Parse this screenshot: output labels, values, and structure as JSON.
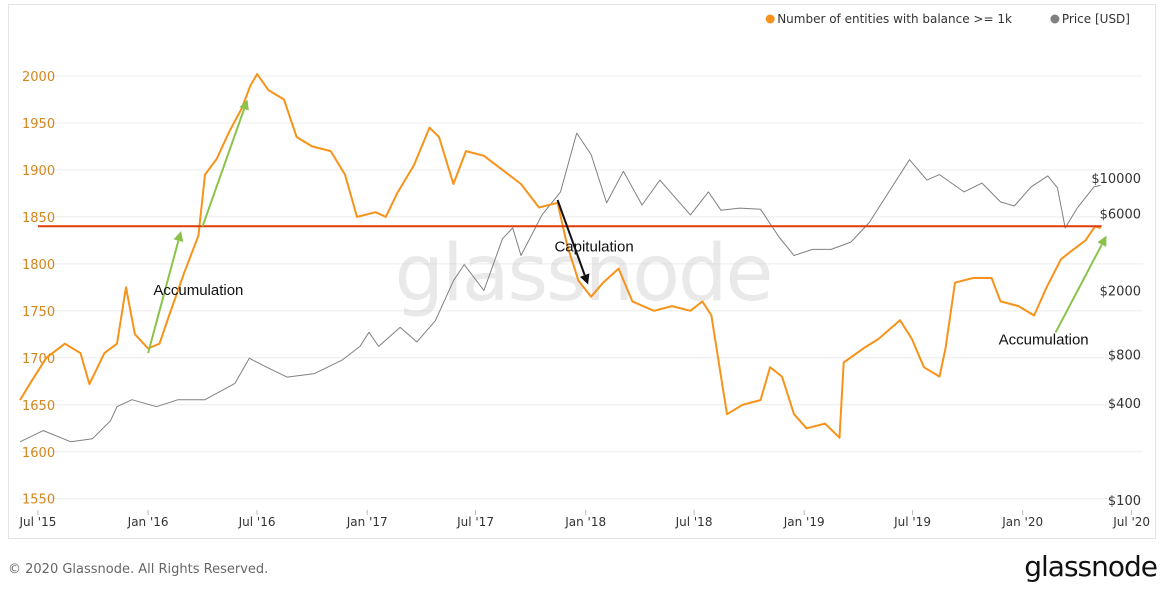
{
  "chart_data": {
    "type": "line",
    "title": "",
    "legend": {
      "placement": "top-right",
      "items": [
        {
          "label": "Number of entities with balance >= 1k",
          "color": "#f7931a"
        },
        {
          "label": "Price [USD]",
          "color": "#808080"
        }
      ]
    },
    "x_ticks": [
      "Jul '15",
      "Jan '16",
      "Jul '16",
      "Jan '17",
      "Jul '17",
      "Jan '18",
      "Jul '18",
      "Jan '19",
      "Jul '19",
      "Jan '20",
      "Jul '20"
    ],
    "x_range": [
      "2015-06-01",
      "2020-07-20"
    ],
    "y_left": {
      "ticks": [
        1550,
        1600,
        1650,
        1700,
        1750,
        1800,
        1850,
        1900,
        1950,
        2000
      ],
      "range": [
        1538,
        2017
      ],
      "color": "#d4861e"
    },
    "y_right": {
      "scale": "log",
      "ticks": [
        "$100",
        "$400",
        "$800",
        "$2000",
        "$6000",
        "$10000"
      ],
      "tick_values": [
        100,
        400,
        800,
        2000,
        6000,
        10000
      ]
    },
    "grid": true,
    "series": [
      {
        "name": "Number of entities with balance >= 1k",
        "axis": "left",
        "color": "#f7931a",
        "points": [
          [
            "2015-06-01",
            1655
          ],
          [
            "2015-06-20",
            1675
          ],
          [
            "2015-07-15",
            1700
          ],
          [
            "2015-08-15",
            1715
          ],
          [
            "2015-09-10",
            1705
          ],
          [
            "2015-09-25",
            1672
          ],
          [
            "2015-10-20",
            1705
          ],
          [
            "2015-11-10",
            1715
          ],
          [
            "2015-11-25",
            1775
          ],
          [
            "2015-12-10",
            1725
          ],
          [
            "2016-01-01",
            1710
          ],
          [
            "2016-01-20",
            1715
          ],
          [
            "2016-02-05",
            1745
          ],
          [
            "2016-03-01",
            1790
          ],
          [
            "2016-03-25",
            1830
          ],
          [
            "2016-04-05",
            1895
          ],
          [
            "2016-04-25",
            1912
          ],
          [
            "2016-05-15",
            1940
          ],
          [
            "2016-06-05",
            1965
          ],
          [
            "2016-06-20",
            1990
          ],
          [
            "2016-07-01",
            2002
          ],
          [
            "2016-07-20",
            1985
          ],
          [
            "2016-08-15",
            1975
          ],
          [
            "2016-09-05",
            1935
          ],
          [
            "2016-10-01",
            1925
          ],
          [
            "2016-11-01",
            1920
          ],
          [
            "2016-11-25",
            1895
          ],
          [
            "2016-12-15",
            1850
          ],
          [
            "2017-01-15",
            1855
          ],
          [
            "2017-02-01",
            1850
          ],
          [
            "2017-02-20",
            1875
          ],
          [
            "2017-03-20",
            1905
          ],
          [
            "2017-04-15",
            1945
          ],
          [
            "2017-05-01",
            1935
          ],
          [
            "2017-05-25",
            1885
          ],
          [
            "2017-06-15",
            1920
          ],
          [
            "2017-07-15",
            1915
          ],
          [
            "2017-08-15",
            1900
          ],
          [
            "2017-09-15",
            1885
          ],
          [
            "2017-10-15",
            1860
          ],
          [
            "2017-11-15",
            1865
          ],
          [
            "2017-12-01",
            1820
          ],
          [
            "2017-12-20",
            1782
          ],
          [
            "2018-01-10",
            1765
          ],
          [
            "2018-01-30",
            1780
          ],
          [
            "2018-02-25",
            1795
          ],
          [
            "2018-03-20",
            1760
          ],
          [
            "2018-04-25",
            1750
          ],
          [
            "2018-05-25",
            1755
          ],
          [
            "2018-06-25",
            1750
          ],
          [
            "2018-07-15",
            1760
          ],
          [
            "2018-07-30",
            1745
          ],
          [
            "2018-08-15",
            1680
          ],
          [
            "2018-08-25",
            1640
          ],
          [
            "2018-09-20",
            1650
          ],
          [
            "2018-10-20",
            1655
          ],
          [
            "2018-11-05",
            1690
          ],
          [
            "2018-11-25",
            1680
          ],
          [
            "2018-12-15",
            1640
          ],
          [
            "2019-01-05",
            1625
          ],
          [
            "2019-02-05",
            1630
          ],
          [
            "2019-03-01",
            1615
          ],
          [
            "2019-03-08",
            1695
          ],
          [
            "2019-04-10",
            1710
          ],
          [
            "2019-05-05",
            1720
          ],
          [
            "2019-06-10",
            1740
          ],
          [
            "2019-06-30",
            1720
          ],
          [
            "2019-07-20",
            1690
          ],
          [
            "2019-08-15",
            1680
          ],
          [
            "2019-08-25",
            1710
          ],
          [
            "2019-09-10",
            1780
          ],
          [
            "2019-10-10",
            1785
          ],
          [
            "2019-11-10",
            1785
          ],
          [
            "2019-11-25",
            1760
          ],
          [
            "2019-12-25",
            1755
          ],
          [
            "2020-01-20",
            1745
          ],
          [
            "2020-02-10",
            1775
          ],
          [
            "2020-03-05",
            1805
          ],
          [
            "2020-03-25",
            1815
          ],
          [
            "2020-04-15",
            1825
          ],
          [
            "2020-05-01",
            1840
          ],
          [
            "2020-05-10",
            1838
          ]
        ]
      },
      {
        "name": "Price [USD]",
        "axis": "right",
        "color": "#808080",
        "points": [
          [
            "2015-06-01",
            230
          ],
          [
            "2015-07-10",
            270
          ],
          [
            "2015-08-25",
            230
          ],
          [
            "2015-09-30",
            240
          ],
          [
            "2015-10-30",
            310
          ],
          [
            "2015-11-10",
            380
          ],
          [
            "2015-12-05",
            420
          ],
          [
            "2016-01-15",
            380
          ],
          [
            "2016-02-20",
            420
          ],
          [
            "2016-04-05",
            420
          ],
          [
            "2016-05-25",
            530
          ],
          [
            "2016-06-18",
            760
          ],
          [
            "2016-07-20",
            660
          ],
          [
            "2016-08-20",
            580
          ],
          [
            "2016-10-05",
            610
          ],
          [
            "2016-11-20",
            740
          ],
          [
            "2016-12-20",
            900
          ],
          [
            "2017-01-04",
            1100
          ],
          [
            "2017-01-20",
            900
          ],
          [
            "2017-02-25",
            1180
          ],
          [
            "2017-03-25",
            960
          ],
          [
            "2017-04-25",
            1300
          ],
          [
            "2017-05-25",
            2300
          ],
          [
            "2017-06-12",
            2900
          ],
          [
            "2017-07-15",
            2000
          ],
          [
            "2017-08-15",
            4200
          ],
          [
            "2017-09-01",
            4900
          ],
          [
            "2017-09-15",
            3300
          ],
          [
            "2017-10-20",
            5900
          ],
          [
            "2017-11-20",
            8200
          ],
          [
            "2017-12-17",
            19000
          ],
          [
            "2018-01-10",
            14000
          ],
          [
            "2018-02-05",
            7000
          ],
          [
            "2018-03-05",
            11000
          ],
          [
            "2018-04-05",
            6800
          ],
          [
            "2018-05-05",
            9700
          ],
          [
            "2018-06-25",
            5900
          ],
          [
            "2018-07-25",
            8200
          ],
          [
            "2018-08-15",
            6300
          ],
          [
            "2018-09-15",
            6500
          ],
          [
            "2018-10-20",
            6400
          ],
          [
            "2018-11-20",
            4300
          ],
          [
            "2018-12-15",
            3300
          ],
          [
            "2019-01-15",
            3600
          ],
          [
            "2019-02-15",
            3600
          ],
          [
            "2019-03-20",
            4000
          ],
          [
            "2019-04-20",
            5300
          ],
          [
            "2019-05-25",
            8500
          ],
          [
            "2019-06-26",
            13000
          ],
          [
            "2019-07-25",
            9700
          ],
          [
            "2019-08-15",
            10500
          ],
          [
            "2019-09-25",
            8200
          ],
          [
            "2019-10-25",
            9300
          ],
          [
            "2019-11-25",
            7100
          ],
          [
            "2019-12-18",
            6700
          ],
          [
            "2020-01-15",
            8800
          ],
          [
            "2020-02-12",
            10300
          ],
          [
            "2020-02-28",
            8700
          ],
          [
            "2020-03-12",
            4900
          ],
          [
            "2020-04-01",
            6500
          ],
          [
            "2020-04-29",
            8800
          ],
          [
            "2020-05-10",
            9000
          ]
        ]
      }
    ],
    "reference_line": {
      "value": 1840,
      "color": "#e03c0a",
      "from": "2015-07-01",
      "to": "2020-05-12"
    },
    "annotations": [
      {
        "text": "Accumulation",
        "x": "2016-03-25",
        "y": 1767
      },
      {
        "text": "Capitulation",
        "x": "2018-01-15",
        "y": 1813
      },
      {
        "text": "Accumulation",
        "x": "2020-02-05",
        "y": 1714
      }
    ],
    "arrows": [
      {
        "color": "#8bc34a",
        "from": [
          "2016-01-01",
          1705
        ],
        "to": [
          "2016-02-25",
          1835
        ]
      },
      {
        "color": "#8bc34a",
        "from": [
          "2016-04-01",
          1840
        ],
        "to": [
          "2016-06-15",
          1975
        ]
      },
      {
        "color": "#111111",
        "from": [
          "2017-11-15",
          1868
        ],
        "to": [
          "2018-01-05",
          1778
        ]
      },
      {
        "color": "#8bc34a",
        "from": [
          "2020-02-25",
          1727
        ],
        "to": [
          "2020-05-20",
          1830
        ]
      }
    ],
    "watermark": "glassnode"
  },
  "footer": {
    "copyright": "© 2020 Glassnode. All Rights Reserved.",
    "logo": "glassnode"
  }
}
